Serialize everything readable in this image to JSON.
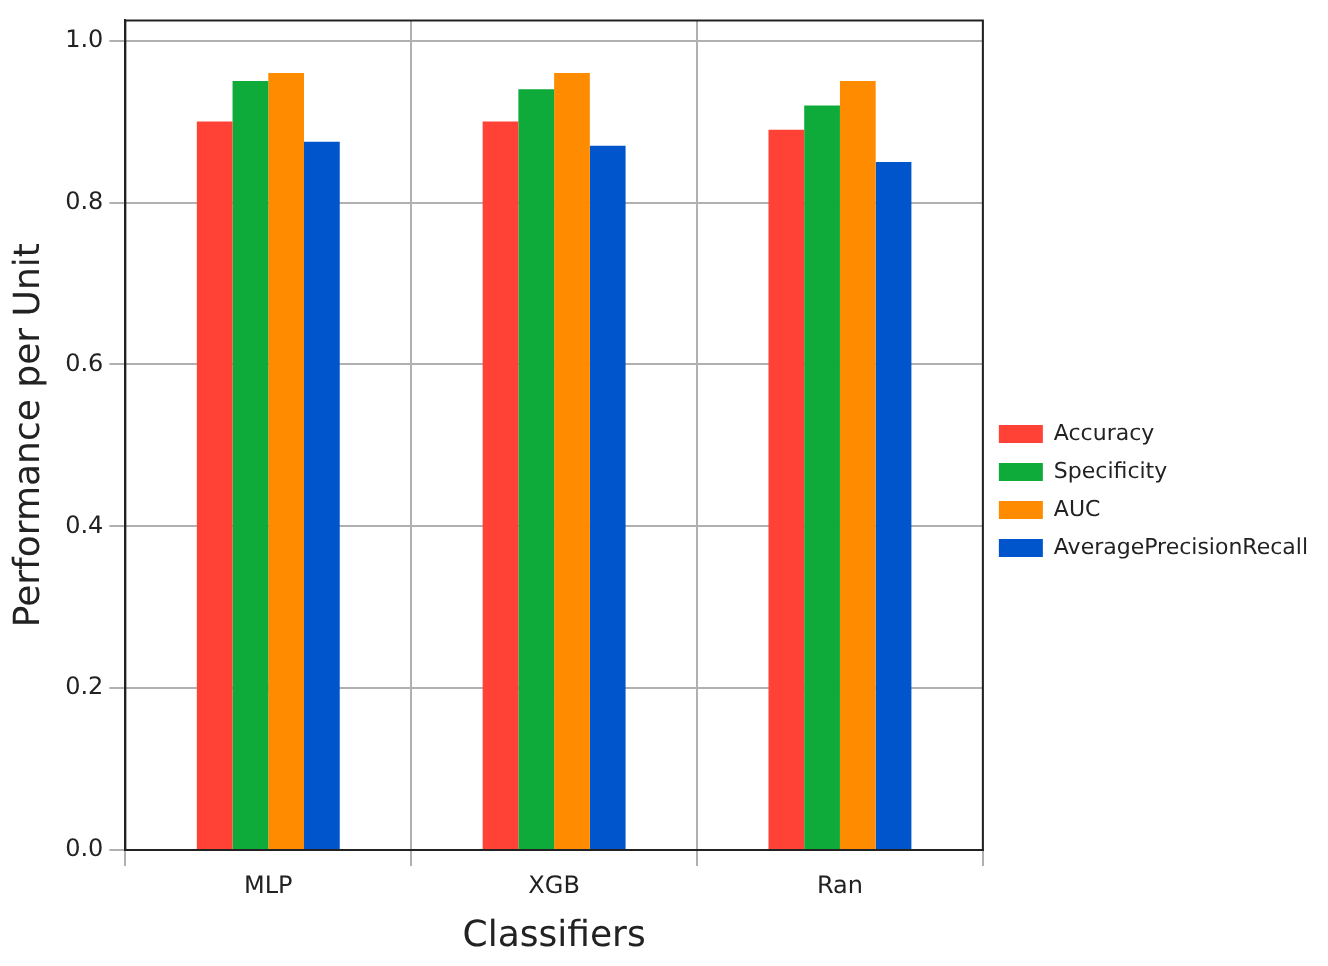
{
  "chart_data": {
    "type": "bar",
    "xlabel": "Classifiers",
    "ylabel": "Performance per Unit",
    "categories": [
      "MLP",
      "XGB",
      "Ran"
    ],
    "series": [
      {
        "name": "Accuracy",
        "color": "#ff4136",
        "values": [
          0.9,
          0.9,
          0.89
        ]
      },
      {
        "name": "Specificity",
        "color": "#0eaa3a",
        "values": [
          0.95,
          0.94,
          0.92
        ]
      },
      {
        "name": "AUC",
        "color": "#ff8c00",
        "values": [
          0.96,
          0.96,
          0.95
        ]
      },
      {
        "name": "AveragePrecisionRecall",
        "color": "#0055cc",
        "values": [
          0.875,
          0.87,
          0.85
        ]
      }
    ],
    "ylim": [
      0,
      1.025
    ],
    "yticks": [
      {
        "value": 0,
        "label": "0.0"
      },
      {
        "value": 0.2,
        "label": "0.2"
      },
      {
        "value": 0.4,
        "label": "0.4"
      },
      {
        "value": 0.6,
        "label": "0.6"
      },
      {
        "value": 0.8,
        "label": "0.8"
      },
      {
        "value": 1,
        "label": "1.0"
      }
    ],
    "grid": true,
    "legend": "right"
  }
}
